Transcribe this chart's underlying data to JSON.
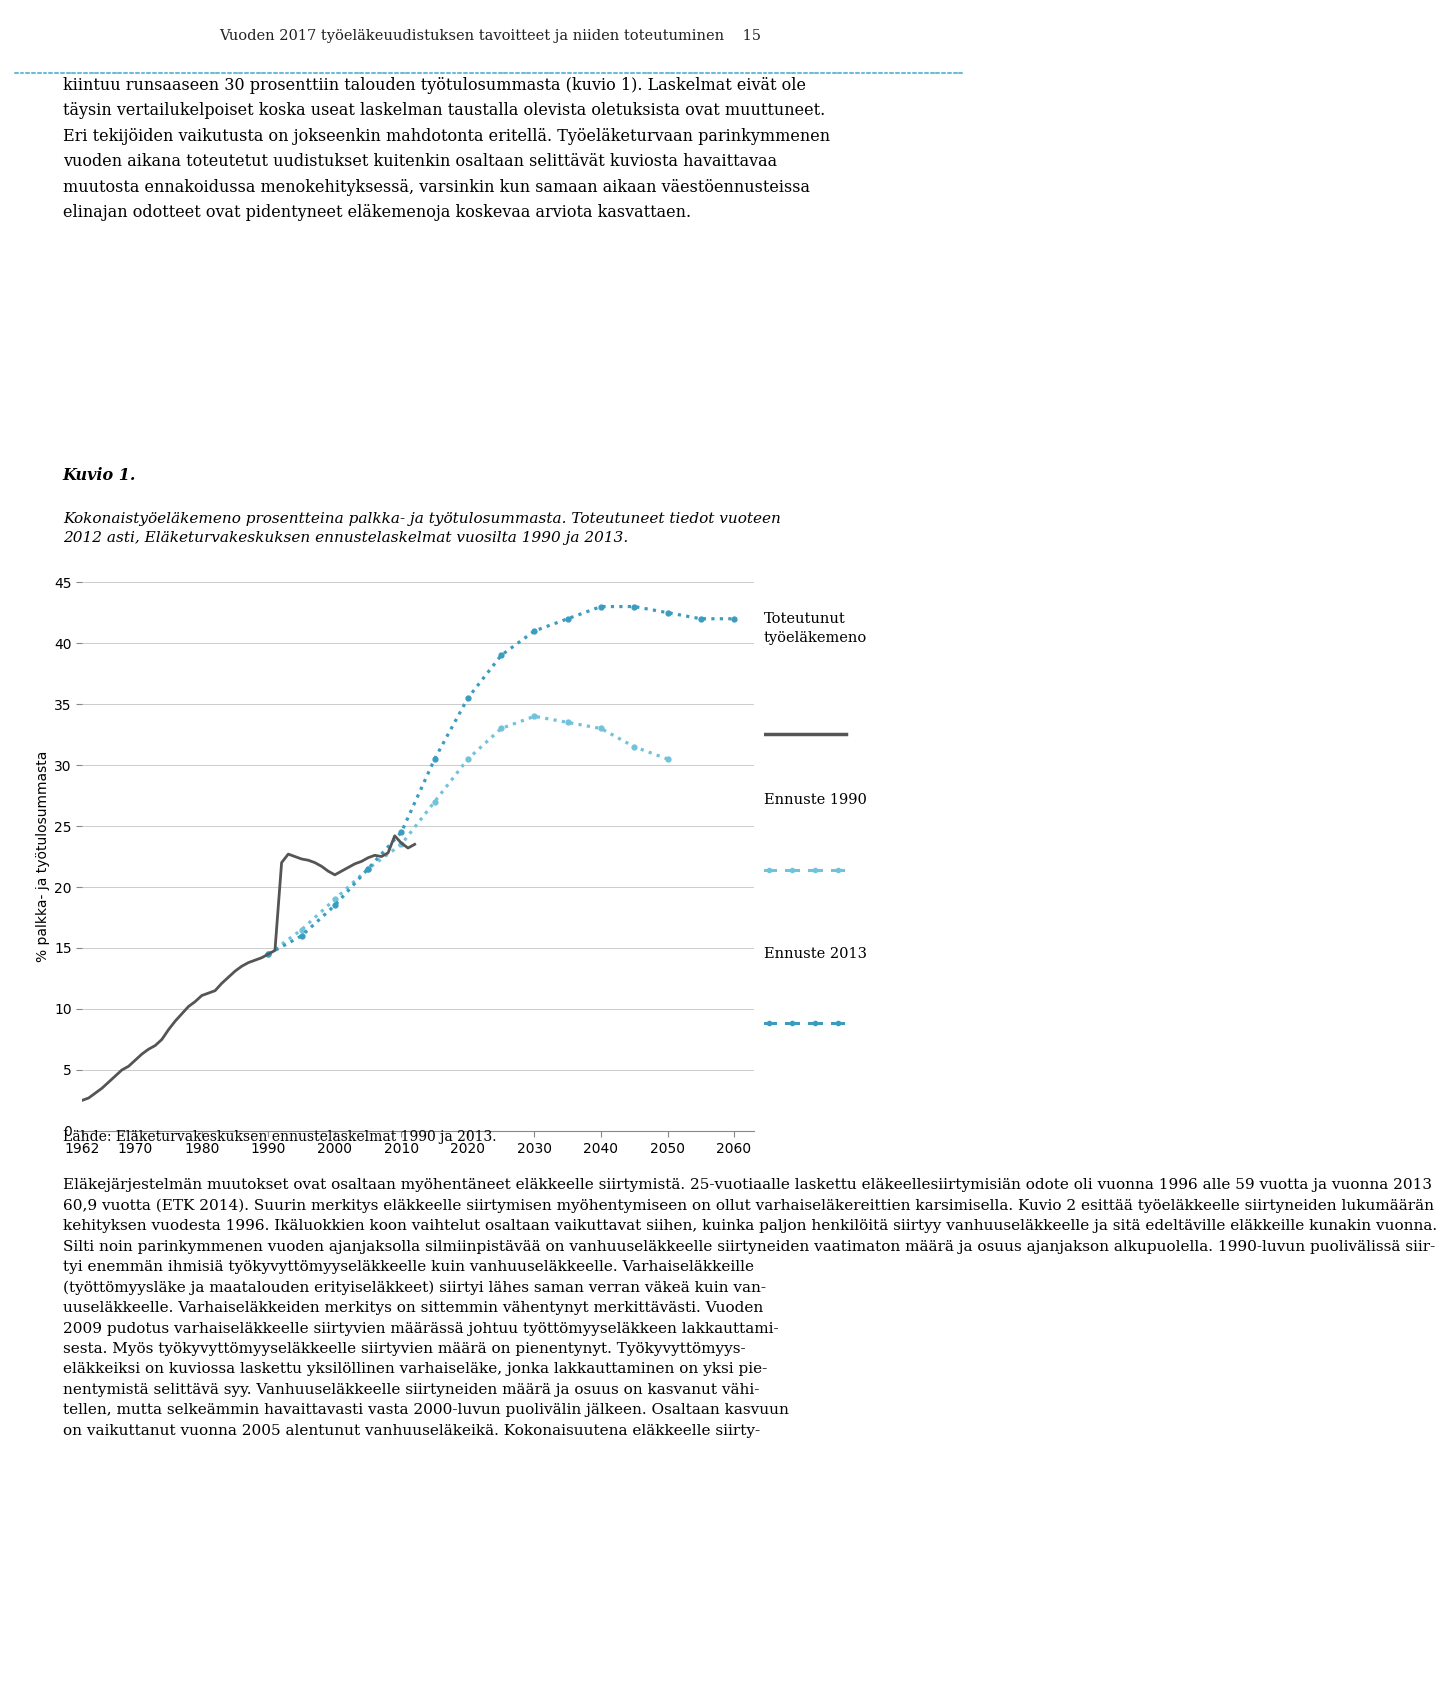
{
  "page_title": "Vuoden 2017 työeläkeuudistuksen tavoitteet ja niiden toteutuminen    15",
  "header_dot_color": "#6BBDD4",
  "body_text": "kiintuu runsaaseen 30 prosenttiin talouden työtulosummasta (kuvio 1). Laskelmat eivät ole\ntäysin vertailukelpoiset koska useat laskelman taustalla olevista oletuksista ovat muuttuneet.\nEri tekijöiden vaikutusta on jokseenkin mahdotonta eritellä. Työeläketurvaan parinkymmenen\nvuoden aikana toteutetut uudistukset kuitenkin osaltaan selittävät kuviosta havaittavaa\nmuutosta ennakoidussa menokehityksessä, varsinkin kun samaan aikaan väestöennusteissa\nelinajan odotteet ovat pidentyneet eläkemenoja koskevaa arviota kasvattaen.",
  "kuvio_label": "Kuvio 1.",
  "kuvio_desc": "Kokonaistyöeläkemeno prosentteina palkka- ja työtulosummasta. Toteutuneet tiedot vuoteen\n2012 asti, Eläketurvakeskuksen ennustelaskelmat vuosilta 1990 ja 2013.",
  "ylabel": "% palkka- ja työtulosummasta",
  "ylim": [
    0,
    45
  ],
  "yticks": [
    0,
    5,
    10,
    15,
    20,
    25,
    30,
    35,
    40,
    45
  ],
  "xlim": [
    1962,
    2063
  ],
  "xticks": [
    1962,
    1970,
    1980,
    1990,
    2000,
    2010,
    2020,
    2030,
    2040,
    2050,
    2060
  ],
  "footer": "Lähde: Eläketurvakeskuksen ennustelaskelmat 1990 ja 2013.",
  "legend_1": "Toteutunut\ntyöeläkemeno",
  "legend_2": "Ennuste 1990",
  "legend_3": "Ennuste 2013",
  "actual_color": "#555555",
  "forecast1990_color": "#71C3DC",
  "forecast2013_color": "#3A9DC0",
  "actual_x": [
    1962,
    1963,
    1964,
    1965,
    1966,
    1967,
    1968,
    1969,
    1970,
    1971,
    1972,
    1973,
    1974,
    1975,
    1976,
    1977,
    1978,
    1979,
    1980,
    1981,
    1982,
    1983,
    1984,
    1985,
    1986,
    1987,
    1988,
    1989,
    1990,
    1991,
    1992,
    1993,
    1994,
    1995,
    1996,
    1997,
    1998,
    1999,
    2000,
    2001,
    2002,
    2003,
    2004,
    2005,
    2006,
    2007,
    2008,
    2009,
    2010,
    2011,
    2012
  ],
  "actual_y": [
    2.5,
    2.7,
    3.1,
    3.5,
    4.0,
    4.5,
    5.0,
    5.3,
    5.8,
    6.3,
    6.7,
    7.0,
    7.5,
    8.3,
    9.0,
    9.6,
    10.2,
    10.6,
    11.1,
    11.3,
    11.5,
    12.1,
    12.6,
    13.1,
    13.5,
    13.8,
    14.0,
    14.2,
    14.5,
    14.8,
    22.0,
    22.7,
    22.5,
    22.3,
    22.2,
    22.0,
    21.7,
    21.3,
    21.0,
    21.3,
    21.6,
    21.9,
    22.1,
    22.4,
    22.6,
    22.5,
    22.8,
    24.2,
    23.6,
    23.2,
    23.5
  ],
  "fc1990_x": [
    1990,
    1995,
    2000,
    2005,
    2010,
    2015,
    2020,
    2025,
    2030,
    2035,
    2040,
    2045,
    2050
  ],
  "fc1990_y": [
    14.5,
    16.5,
    19.0,
    21.5,
    23.5,
    27.0,
    30.5,
    33.0,
    34.0,
    33.5,
    33.0,
    31.5,
    30.5
  ],
  "fc2013_x": [
    1990,
    1995,
    2000,
    2005,
    2010,
    2015,
    2020,
    2025,
    2030,
    2035,
    2040,
    2045,
    2050,
    2055,
    2060
  ],
  "fc2013_y": [
    14.5,
    16.0,
    18.5,
    21.5,
    24.5,
    30.5,
    35.5,
    39.0,
    41.0,
    42.0,
    43.0,
    43.0,
    42.5,
    42.0,
    42.0
  ],
  "bottom_text": "Eläkejärjestelmän muutokset ovat osaltaan myöhentäneet eläkkeelle siirtymistä. 25-vuotiaalle laskettu eläkeellesiirtymisiän odote oli vuonna 1996 alle 59 vuotta ja vuonna 2013\n60,9 vuotta (ETK 2014). Suurin merkitys eläkkeelle siirtymisen myöhentymiseen on ollut varhaiseläkereittien karsimisella. Kuvio 2 esittää työeläkkeelle siirtyneiden lukumäärän\nkehityksen vuodesta 1996. Ikäluokkien koon vaihtelut osaltaan vaikuttavat siihen, kuinka paljon henkilöitä siirtyy vanhuuseläkkeelle ja sitä edeltäville eläkkeille kunakin vuonna.\nSilti noin parinkymmenen vuoden ajanjaksolla silmiinpistävää on vanhuuseläkkeelle siirtyneiden vaatimaton määrä ja osuus ajanjakson alkupuolella. 1990-luvun puolivälissä siir-\ntyi enemmän ihmisiä työkyvyttömyyseläkkeelle kuin vanhuuseläkkeelle. Varhaiseläkkeille\n(työttömyysläke ja maatalouden erityiseläkkeet) siirtyi lähes saman verran väkeä kuin van-\nuuseläkkeelle. Varhaiseläkkeiden merkitys on sittemmin vähentynyt merkittävästi. Vuoden\n2009 pudotus varhaiseläkkeelle siirtyvien määrässä johtuu työttömyyseläkkeen lakkauttami-\nsesta. Myös työkyvyttömyyseläkkeelle siirtyvien määrä on pienentynyt. Työkyvyttömyys-\neläkkeiksi on kuviossa laskettu yksilöllinen varhaiseläke, jonka lakkauttaminen on yksi pie-\nnentymistä selittävä syy. Vanhuuseläkkeelle siirtyneiden määrä ja osuus on kasvanut vähi-\ntellen, mutta selkeämmin havaittavasti vasta 2000-luvun puolivälin jälkeen. Osaltaan kasvuun\non vaikuttanut vuonna 2005 alentunut vanhuuseläkeikä. Kokonaisuutena eläkkeelle siirty-"
}
